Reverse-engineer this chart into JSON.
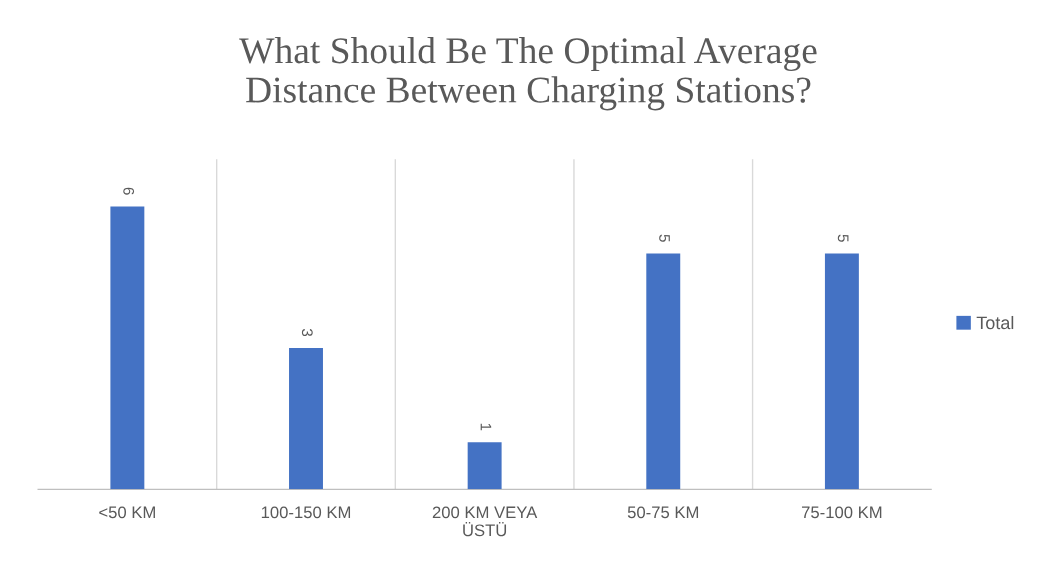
{
  "chart_data": {
    "type": "bar",
    "title": "What Should Be The Optimal Average\nDistance Between Charging Stations?",
    "categories": [
      "<50 KM",
      "100-150 KM",
      "200 KM VEYA\nÜSTÜ",
      "50-75 KM",
      "75-100 KM"
    ],
    "series": [
      {
        "name": "Total",
        "color": "#4472c4",
        "values": [
          6,
          3,
          1,
          5,
          5
        ]
      }
    ],
    "ylim": [
      0,
      7
    ],
    "data_labels": true,
    "grid": "x",
    "legend": "right",
    "tick_labels": "x"
  }
}
